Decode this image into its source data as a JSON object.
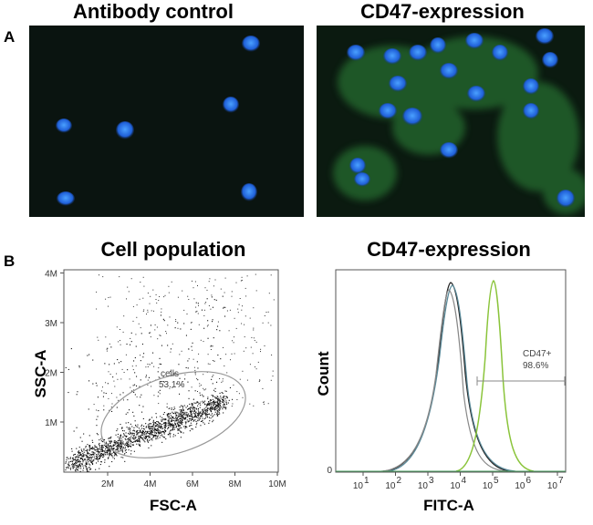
{
  "panel_a": {
    "label": "A",
    "images": [
      {
        "title": "Antibody control"
      },
      {
        "title": "CD47-expression"
      }
    ]
  },
  "panel_b": {
    "label": "B",
    "scatter": {
      "title": "Cell population",
      "y_label": "SSC-A",
      "x_label": "FSC-A",
      "yticks": [
        "1M",
        "2M",
        "3M",
        "4M"
      ],
      "xticks": [
        "2M",
        "4M",
        "6M",
        "8M",
        "10M"
      ],
      "gate": {
        "name": "cells",
        "percent": "53.1%"
      }
    },
    "histogram": {
      "title": "CD47-expression",
      "y_label": "Count",
      "x_label": "FITC-A",
      "y_zero": "0",
      "xticks": [
        {
          "base": "10",
          "exp": "1"
        },
        {
          "base": "10",
          "exp": "2"
        },
        {
          "base": "10",
          "exp": "3"
        },
        {
          "base": "10",
          "exp": "4"
        },
        {
          "base": "10",
          "exp": "5"
        },
        {
          "base": "10",
          "exp": "6"
        },
        {
          "base": "10",
          "exp": "7"
        }
      ],
      "gate": {
        "name": "CD47+",
        "percent": "98.6%"
      }
    }
  }
}
